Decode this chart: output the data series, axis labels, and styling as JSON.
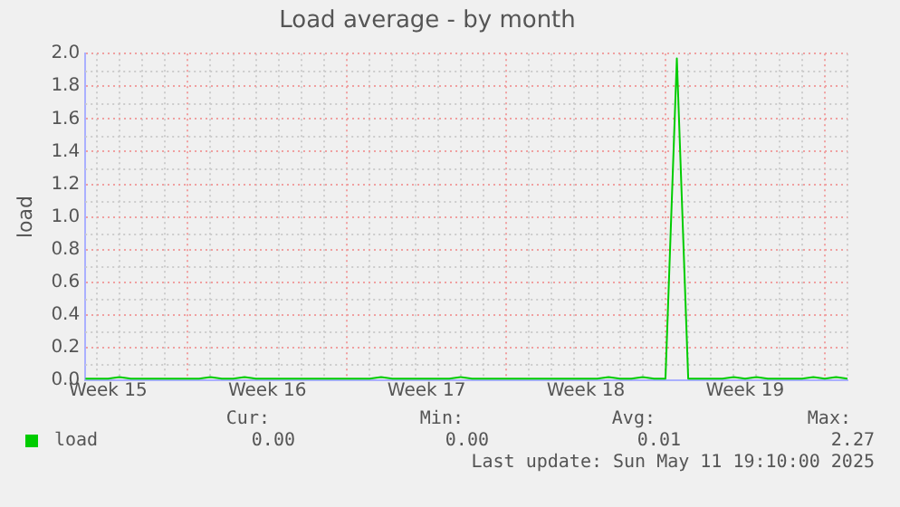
{
  "chart_data": {
    "type": "line",
    "title": "Load average - by month",
    "ylabel": "load",
    "categories": [
      null,
      null,
      "Week 15",
      null,
      null,
      null,
      null,
      null,
      null,
      null,
      null,
      null,
      null,
      null,
      null,
      null,
      "Week 16",
      null,
      null,
      null,
      null,
      null,
      null,
      null,
      null,
      null,
      null,
      null,
      null,
      null,
      "Week 17",
      null,
      null,
      null,
      null,
      null,
      null,
      null,
      null,
      null,
      null,
      null,
      null,
      null,
      "Week 18",
      null,
      null,
      null,
      null,
      null,
      null,
      null,
      null,
      null,
      null,
      null,
      null,
      null,
      "Week 19",
      null,
      null,
      null,
      null,
      null,
      null,
      null,
      null,
      null
    ],
    "series": [
      {
        "name": "load",
        "color": "#00cc00",
        "values": [
          0.01,
          0.01,
          0.01,
          0.02,
          0.01,
          0.01,
          0.01,
          0.01,
          0.01,
          0.01,
          0.01,
          0.02,
          0.01,
          0.01,
          0.02,
          0.01,
          0.01,
          0.01,
          0.01,
          0.01,
          0.01,
          0.01,
          0.01,
          0.01,
          0.01,
          0.01,
          0.02,
          0.01,
          0.01,
          0.01,
          0.01,
          0.01,
          0.01,
          0.02,
          0.01,
          0.01,
          0.01,
          0.01,
          0.01,
          0.01,
          0.01,
          0.01,
          0.01,
          0.01,
          0.01,
          0.01,
          0.02,
          0.01,
          0.01,
          0.02,
          0.01,
          0.01,
          1.97,
          0.01,
          0.01,
          0.01,
          0.01,
          0.02,
          0.01,
          0.02,
          0.01,
          0.01,
          0.01,
          0.01,
          0.02,
          0.01,
          0.02,
          0.01
        ]
      }
    ],
    "ylim": [
      0,
      2
    ],
    "yticks": [
      {
        "value": 0,
        "label": "0.0"
      },
      {
        "value": 0.2,
        "label": "0.2"
      },
      {
        "value": 0.4,
        "label": "0.4"
      },
      {
        "value": 0.6,
        "label": "0.6"
      },
      {
        "value": 0.8,
        "label": "0.8"
      },
      {
        "value": 1,
        "label": "1.0"
      },
      {
        "value": 1.2,
        "label": "1.2"
      },
      {
        "value": 1.4,
        "label": "1.4"
      },
      {
        "value": 1.6,
        "label": "1.6"
      },
      {
        "value": 1.8,
        "label": "1.8"
      },
      {
        "value": 2,
        "label": "2.0"
      }
    ],
    "grid": true,
    "legend": "bottom left",
    "marker": "none",
    "line_style": "solid",
    "annotations": [
      "Cur:",
      "Min:",
      "Avg:",
      "Max:",
      "0.00",
      "0.00",
      "0.01",
      "2.27",
      "Last update: Sun May 11 19:10:00 2025"
    ]
  }
}
